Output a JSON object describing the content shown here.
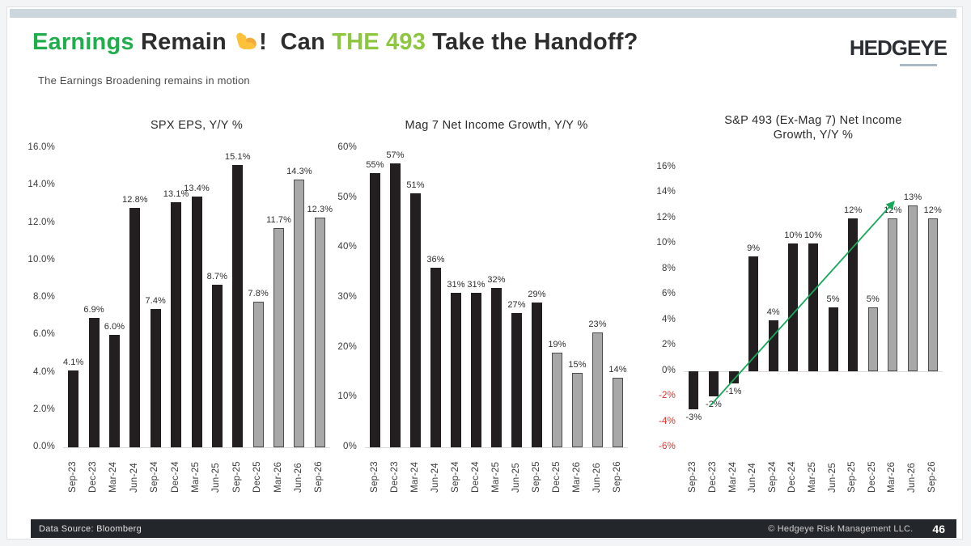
{
  "header": {
    "title_seg1": "Earnings",
    "title_seg2": " Remain ",
    "title_seg3": "!  Can ",
    "title_seg4": "THE 493",
    "title_seg5": " Take the Handoff?",
    "subtitle": "The Earnings Broadening remains in motion",
    "logo": "HEDGEYE",
    "colors": {
      "green": "#1fae4b",
      "light_green": "#8dc63f",
      "dark_text": "#2d2d2d"
    }
  },
  "footer": {
    "source": "Data Source: Bloomberg",
    "copyright": "© Hedgeye Risk Management LLC.",
    "page": "46"
  },
  "chart_data": [
    {
      "type": "bar",
      "title": "SPX EPS, Y/Y %",
      "categories": [
        "Sep-23",
        "Dec-23",
        "Mar-24",
        "Jun-24",
        "Sep-24",
        "Dec-24",
        "Mar-25",
        "Jun-25",
        "Sep-25",
        "Dec-25",
        "Mar-26",
        "Jun-26",
        "Sep-26"
      ],
      "values": [
        4.1,
        6.9,
        6.0,
        12.8,
        7.4,
        13.1,
        13.4,
        8.7,
        15.1,
        7.8,
        11.7,
        14.3,
        12.3
      ],
      "value_labels": [
        "4.1%",
        "6.9%",
        "6.0%",
        "12.8%",
        "7.4%",
        "13.1%",
        "13.4%",
        "8.7%",
        "15.1%",
        "7.8%",
        "11.7%",
        "14.3%",
        "12.3%"
      ],
      "actual_count": 9,
      "ylim": [
        0,
        16
      ],
      "tick_step": 2,
      "tick_decimals": 1,
      "grid": false,
      "legend": "none",
      "bar_color_actual": "#231f20",
      "bar_color_estimate": "#a8a8a8",
      "estimate_border": "#4b4b4b"
    },
    {
      "type": "bar",
      "title": "Mag 7 Net Income Growth, Y/Y %",
      "categories": [
        "Sep-23",
        "Dec-23",
        "Mar-24",
        "Jun-24",
        "Sep-24",
        "Dec-24",
        "Mar-25",
        "Jun-25",
        "Sep-25",
        "Dec-25",
        "Mar-26",
        "Jun-26",
        "Sep-26"
      ],
      "values": [
        55,
        57,
        51,
        36,
        31,
        31,
        32,
        27,
        29,
        19,
        15,
        23,
        14
      ],
      "value_labels": [
        "55%",
        "57%",
        "51%",
        "36%",
        "31%",
        "31%",
        "32%",
        "27%",
        "29%",
        "19%",
        "15%",
        "23%",
        "14%"
      ],
      "actual_count": 9,
      "ylim": [
        0,
        60
      ],
      "tick_step": 10,
      "tick_decimals": 0,
      "grid": false,
      "legend": "none",
      "bar_color_actual": "#231f20",
      "bar_color_estimate": "#a8a8a8",
      "estimate_border": "#4b4b4b"
    },
    {
      "type": "bar",
      "title": "S&P 493 (Ex-Mag 7) Net Income\nGrowth, Y/Y %",
      "categories": [
        "Sep-23",
        "Dec-23",
        "Mar-24",
        "Jun-24",
        "Sep-24",
        "Dec-24",
        "Mar-25",
        "Jun-25",
        "Sep-25",
        "Dec-25",
        "Mar-26",
        "Jun-26",
        "Sep-26"
      ],
      "values": [
        -3,
        -2,
        -1,
        9,
        4,
        10,
        10,
        5,
        12,
        5,
        12,
        13,
        12
      ],
      "value_labels": [
        "-3%",
        "-2%",
        "-1%",
        "9%",
        "4%",
        "10%",
        "10%",
        "5%",
        "12%",
        "5%",
        "12%",
        "13%",
        "12%"
      ],
      "actual_count": 9,
      "ylim": [
        -6,
        16
      ],
      "tick_step": 2,
      "tick_decimals": 0,
      "grid": false,
      "legend": "none",
      "negative_tick_color": "#e8302a",
      "bar_color_actual": "#231f20",
      "bar_color_estimate": "#a8a8a8",
      "estimate_border": "#4b4b4b",
      "annotation": {
        "type": "arrow",
        "color": "#16a85a",
        "from": {
          "slot": 1.35,
          "value": -2.7
        },
        "to": {
          "slot": 10.55,
          "value": 13.3
        }
      }
    }
  ]
}
